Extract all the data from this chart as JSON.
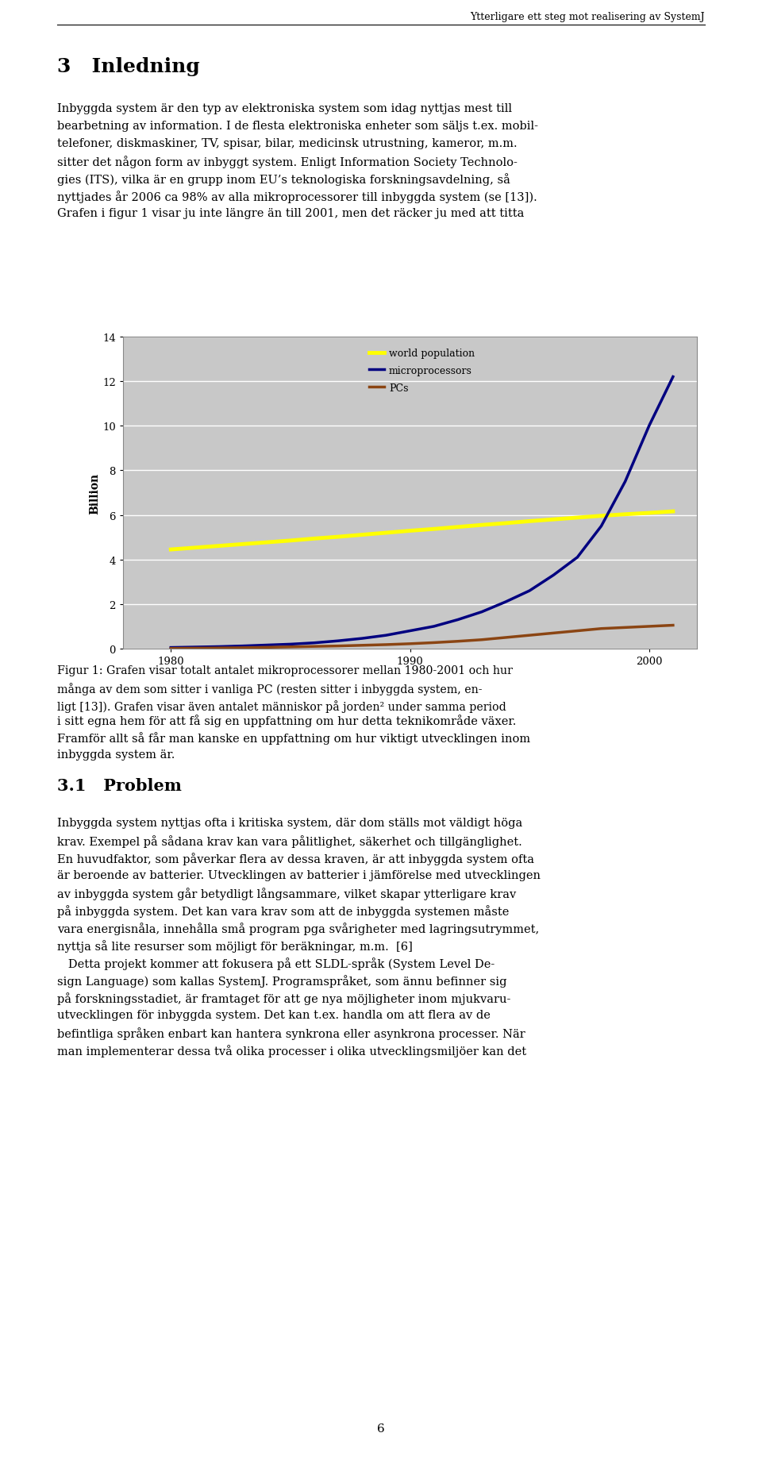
{
  "page_width": 9.6,
  "page_height": 18.4,
  "background_color": "#ffffff",
  "header_text": "Ytterligare ett steg mot realisering av SystemJ",
  "section_title": "3   Inledning",
  "body_text_1": "Inbyggda system är den typ av elektroniska system som idag nyttjas mest till\nbearbetning av information. I de flesta elektroniska enheter som säljs t.ex. mobil-\ntelefoner, diskmaskiner, TV, spisar, bilar, medicinsk utrustning, kameror, m.m.\nsitter det någon form av inbyggt system. Enligt Information Society Technolo-\ngies (ITS), vilka är en grupp inom EU’s teknologiska forskningsavdelning, så\nnyttjades år 2006 ca 98% av alla mikroprocessorer till inbyggda system (se [13]).\nGrafen i figur 1 visar ju inte längre än till 2001, men det räcker ju med att titta",
  "fig_caption": "Figur 1: Grafen visar totalt antalet mikroprocessorer mellan 1980-2001 och hur\nmånga av dem som sitter i vanliga PC (resten sitter i inbyggda system, en-\nligt [13]). Grafen visar även antalet människor på jorden² under samma period",
  "body_text_2": "i sitt egna hem för att få sig en uppfattning om hur detta teknikområde växer.\nFramför allt så får man kanske en uppfattning om hur viktigt utvecklingen inom\ninbyggda system är.",
  "section_title_2": "3.1   Problem",
  "body_text_3": "Inbyggda system nyttjas ofta i kritiska system, där dom ställs mot väldigt höga\nkrav. Exempel på sådana krav kan vara pålitlighet, säkerhet och tillgänglighet.\nEn huvudfaktor, som påverkar flera av dessa kraven, är att inbyggda system ofta\när beroende av batterier. Utvecklingen av batterier i jämförelse med utvecklingen\nav inbyggda system går betydligt långsammare, vilket skapar ytterligare krav\npå inbyggda system. Det kan vara krav som att de inbyggda systemen måste\nvara energisnåla, innehålla små program pga svårigheter med lagringsutrymmet,\nnyttja så lite resurser som möjligt för beräkningar, m.m.  [6]",
  "body_text_4": "   Detta projekt kommer att fokusera på ett SLDL-språk (System Level De-\nsign Language) som kallas SystemJ. Programspråket, som ännu befinner sig\npå forskningsstadiet, är framtaget för att ge nya möjligheter inom mjukvaru-\nutvecklingen för inbyggda system. Det kan t.ex. handla om att flera av de\nbefintliga språken enbart kan hantera synkrona eller asynkrona processer. När\nman implementerar dessa två olika processer i olika utvecklingsmiljöer kan det",
  "page_number": "6",
  "chart": {
    "xlim": [
      1978,
      2002
    ],
    "ylim": [
      0,
      14
    ],
    "yticks": [
      0,
      2,
      4,
      6,
      8,
      10,
      12,
      14
    ],
    "xticks": [
      1980,
      1990,
      2000
    ],
    "ylabel": "Billion",
    "bg_color": "#c8c8c8",
    "grid_color": "#ffffff",
    "world_pop_color": "#ffff00",
    "microprocessors_color": "#000080",
    "pcs_color": "#8B4513",
    "years": [
      1980,
      1981,
      1982,
      1983,
      1984,
      1985,
      1986,
      1987,
      1988,
      1989,
      1990,
      1991,
      1992,
      1993,
      1994,
      1995,
      1996,
      1997,
      1998,
      1999,
      2000,
      2001
    ],
    "world_pop": [
      4.45,
      4.53,
      4.61,
      4.69,
      4.77,
      4.85,
      4.94,
      5.02,
      5.11,
      5.2,
      5.29,
      5.37,
      5.46,
      5.55,
      5.63,
      5.72,
      5.8,
      5.88,
      5.96,
      6.03,
      6.09,
      6.16
    ],
    "microprocessors": [
      0.05,
      0.07,
      0.09,
      0.12,
      0.16,
      0.2,
      0.26,
      0.35,
      0.46,
      0.6,
      0.8,
      1.0,
      1.3,
      1.65,
      2.1,
      2.6,
      3.3,
      4.1,
      5.5,
      7.5,
      10.0,
      12.2
    ],
    "pcs": [
      0.01,
      0.02,
      0.03,
      0.04,
      0.06,
      0.08,
      0.1,
      0.12,
      0.15,
      0.18,
      0.22,
      0.27,
      0.33,
      0.4,
      0.5,
      0.6,
      0.7,
      0.8,
      0.9,
      0.95,
      1.0,
      1.05
    ]
  }
}
